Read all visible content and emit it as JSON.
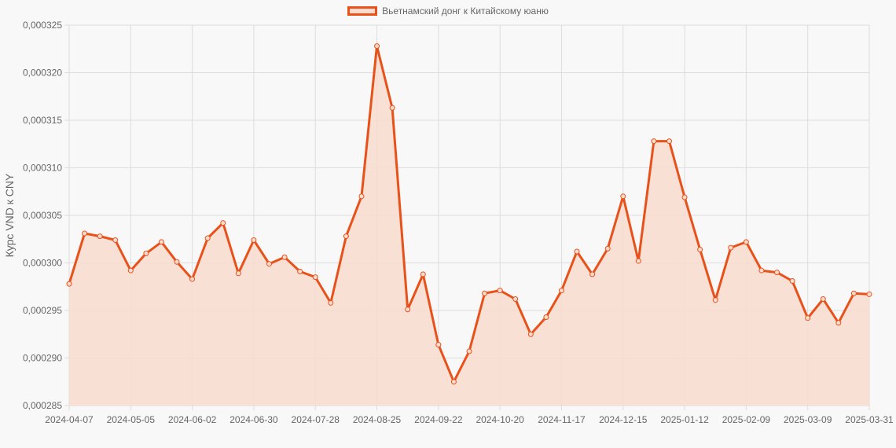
{
  "chart_data": {
    "type": "area",
    "title": "",
    "legend": {
      "position": "top",
      "entries": [
        "Вьетнамский донг к Китайскому юаню"
      ]
    },
    "xlabel": "",
    "ylabel": "Курс VND к CNY",
    "ylim": [
      0.000285,
      0.000325
    ],
    "yticks": [
      "0,000325",
      "0,000320",
      "0,000315",
      "0,000310",
      "0,000305",
      "0,000300",
      "0,000295",
      "0,000290",
      "0,000285"
    ],
    "xticks": [
      "2024-04-07",
      "2024-05-05",
      "2024-06-02",
      "2024-06-30",
      "2024-07-28",
      "2024-08-25",
      "2024-09-22",
      "2024-10-20",
      "2024-11-17",
      "2024-12-15",
      "2025-01-12",
      "2025-02-09",
      "2025-03-09",
      "2025-03-31"
    ],
    "grid": true,
    "colors": {
      "line": "#e8521a",
      "fill": "#f9dccf",
      "grid": "#dddddd",
      "text": "#666666"
    },
    "x": [
      "2024-04-07",
      "2024-04-14",
      "2024-04-21",
      "2024-04-28",
      "2024-05-05",
      "2024-05-12",
      "2024-05-19",
      "2024-05-26",
      "2024-06-02",
      "2024-06-09",
      "2024-06-16",
      "2024-06-23",
      "2024-06-30",
      "2024-07-07",
      "2024-07-14",
      "2024-07-21",
      "2024-07-28",
      "2024-08-04",
      "2024-08-11",
      "2024-08-18",
      "2024-08-25",
      "2024-09-01",
      "2024-09-08",
      "2024-09-15",
      "2024-09-22",
      "2024-09-29",
      "2024-10-06",
      "2024-10-13",
      "2024-10-20",
      "2024-10-27",
      "2024-11-03",
      "2024-11-10",
      "2024-11-17",
      "2024-11-24",
      "2024-12-01",
      "2024-12-08",
      "2024-12-15",
      "2024-12-22",
      "2024-12-29",
      "2025-01-05",
      "2025-01-12",
      "2025-01-19",
      "2025-01-26",
      "2025-02-02",
      "2025-02-09",
      "2025-02-16",
      "2025-02-23",
      "2025-03-02",
      "2025-03-09",
      "2025-03-16",
      "2025-03-23",
      "2025-03-30",
      "2025-03-31"
    ],
    "series": [
      {
        "name": "Вьетнамский донг к Китайскому юаню",
        "values": [
          0.0002978,
          0.0003031,
          0.0003028,
          0.0003024,
          0.0002992,
          0.000301,
          0.0003022,
          0.0003001,
          0.0002983,
          0.0003026,
          0.0003042,
          0.0002989,
          0.0003024,
          0.0002999,
          0.0003006,
          0.0002991,
          0.0002985,
          0.0002958,
          0.0003028,
          0.000307,
          0.0003228,
          0.0003163,
          0.0002951,
          0.0002988,
          0.0002914,
          0.0002875,
          0.0002907,
          0.0002968,
          0.0002971,
          0.0002962,
          0.0002925,
          0.0002943,
          0.0002971,
          0.0003012,
          0.0002988,
          0.0003015,
          0.000307,
          0.0003002,
          0.0003128,
          0.0003128,
          0.0003069,
          0.0003014,
          0.0002961,
          0.0003016,
          0.0003022,
          0.0002992,
          0.000299,
          0.0002981,
          0.0002942,
          0.0002962,
          0.0002937,
          0.0002968,
          0.0002967
        ]
      }
    ]
  }
}
